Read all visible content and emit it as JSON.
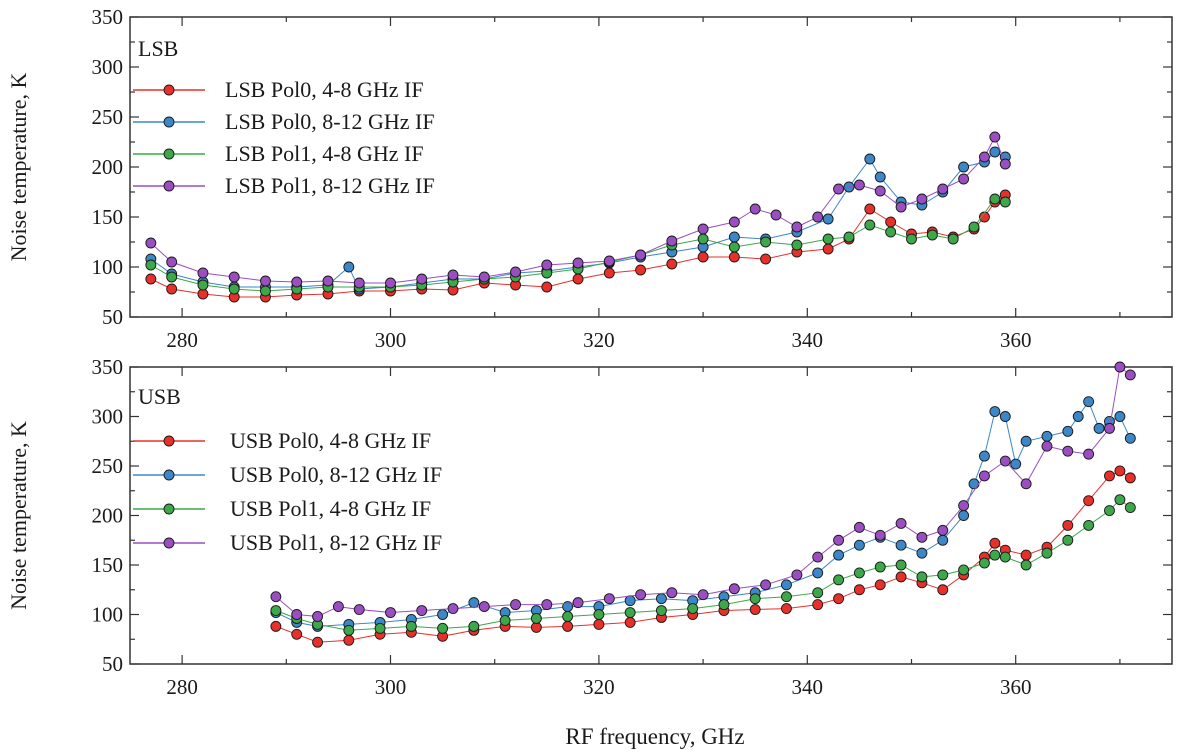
{
  "chart_data": [
    {
      "type": "line",
      "panel_title": "LSB",
      "xlabel": "",
      "ylabel": "Noise temperature, K",
      "xlim": [
        275,
        375
      ],
      "ylim": [
        50,
        350
      ],
      "xticks": [
        280,
        300,
        320,
        340,
        360
      ],
      "yticks": [
        50,
        100,
        150,
        200,
        250,
        300,
        350
      ],
      "legend_position": "top-left",
      "series": [
        {
          "name": "LSB Pol0, 4-8 GHz IF",
          "color": "#e8302a",
          "x": [
            277,
            279,
            282,
            285,
            288,
            291,
            294,
            297,
            300,
            303,
            306,
            309,
            312,
            315,
            318,
            321,
            324,
            327,
            330,
            333,
            336,
            339,
            342,
            344,
            346,
            348,
            350,
            352,
            354,
            356,
            357,
            358,
            359
          ],
          "y": [
            88,
            78,
            73,
            70,
            70,
            72,
            73,
            76,
            76,
            78,
            77,
            84,
            82,
            80,
            88,
            94,
            97,
            103,
            110,
            110,
            108,
            115,
            118,
            128,
            158,
            145,
            133,
            135,
            130,
            138,
            150,
            165,
            172
          ]
        },
        {
          "name": "LSB Pol0, 8-12 GHz IF",
          "color": "#3b87c8",
          "x": [
            277,
            279,
            282,
            285,
            288,
            291,
            294,
            296,
            297,
            300,
            303,
            306,
            309,
            312,
            315,
            318,
            321,
            324,
            327,
            330,
            333,
            336,
            339,
            342,
            344,
            346,
            347,
            349,
            351,
            353,
            355,
            357,
            358,
            359
          ],
          "y": [
            108,
            93,
            85,
            80,
            80,
            80,
            82,
            100,
            78,
            80,
            84,
            88,
            88,
            94,
            96,
            100,
            104,
            110,
            115,
            120,
            130,
            128,
            135,
            148,
            180,
            208,
            190,
            165,
            162,
            175,
            200,
            205,
            215,
            210
          ]
        },
        {
          "name": "LSB Pol1, 4-8 GHz IF",
          "color": "#3ca84a",
          "x": [
            277,
            279,
            282,
            285,
            288,
            291,
            294,
            297,
            300,
            303,
            306,
            309,
            312,
            315,
            318,
            321,
            324,
            327,
            330,
            333,
            336,
            339,
            342,
            344,
            346,
            348,
            350,
            352,
            354,
            356,
            358,
            359
          ],
          "y": [
            102,
            90,
            82,
            78,
            76,
            78,
            80,
            80,
            80,
            82,
            85,
            88,
            90,
            94,
            98,
            105,
            112,
            122,
            128,
            120,
            125,
            122,
            128,
            130,
            142,
            135,
            128,
            132,
            128,
            140,
            168,
            165
          ]
        },
        {
          "name": "LSB Pol1, 8-12 GHz IF",
          "color": "#9a4ec2",
          "x": [
            277,
            279,
            282,
            285,
            288,
            291,
            294,
            297,
            300,
            303,
            306,
            309,
            312,
            315,
            318,
            321,
            324,
            327,
            330,
            333,
            335,
            337,
            339,
            341,
            343,
            345,
            347,
            349,
            351,
            353,
            355,
            357,
            358,
            359
          ],
          "y": [
            124,
            105,
            94,
            90,
            86,
            85,
            86,
            84,
            84,
            88,
            92,
            90,
            95,
            102,
            104,
            106,
            112,
            126,
            138,
            145,
            158,
            152,
            140,
            150,
            178,
            182,
            176,
            160,
            168,
            178,
            188,
            210,
            230,
            203
          ]
        }
      ]
    },
    {
      "type": "line",
      "panel_title": "USB",
      "xlabel": "RF frequency, GHz",
      "ylabel": "Noise temperature, K",
      "xlim": [
        275,
        375
      ],
      "ylim": [
        50,
        350
      ],
      "xticks": [
        280,
        300,
        320,
        340,
        360
      ],
      "yticks": [
        50,
        100,
        150,
        200,
        250,
        300,
        350
      ],
      "legend_position": "top-left",
      "series": [
        {
          "name": "USB Pol0, 4-8 GHz IF",
          "color": "#e8302a",
          "x": [
            289,
            291,
            293,
            296,
            299,
            302,
            305,
            308,
            311,
            314,
            317,
            320,
            323,
            326,
            329,
            332,
            335,
            338,
            341,
            343,
            345,
            347,
            349,
            351,
            353,
            355,
            357,
            358,
            359,
            361,
            363,
            365,
            367,
            369,
            370,
            371
          ],
          "y": [
            88,
            80,
            72,
            74,
            80,
            82,
            78,
            84,
            88,
            87,
            88,
            90,
            92,
            97,
            100,
            104,
            105,
            106,
            110,
            116,
            125,
            130,
            138,
            132,
            125,
            140,
            158,
            172,
            165,
            160,
            168,
            190,
            215,
            240,
            245,
            238
          ]
        },
        {
          "name": "USB Pol0, 8-12 GHz IF",
          "color": "#3b87c8",
          "x": [
            289,
            291,
            293,
            296,
            299,
            302,
            305,
            308,
            311,
            314,
            317,
            320,
            323,
            326,
            329,
            332,
            335,
            338,
            341,
            343,
            345,
            347,
            349,
            351,
            353,
            355,
            356,
            357,
            358,
            359,
            360,
            361,
            363,
            365,
            366,
            367,
            368,
            369,
            370,
            371
          ],
          "y": [
            102,
            92,
            88,
            90,
            92,
            95,
            100,
            112,
            102,
            104,
            108,
            108,
            114,
            116,
            114,
            118,
            122,
            130,
            142,
            160,
            170,
            178,
            170,
            162,
            175,
            200,
            232,
            260,
            305,
            300,
            252,
            275,
            280,
            285,
            300,
            315,
            288,
            295,
            300,
            278
          ]
        },
        {
          "name": "USB Pol1, 4-8 GHz IF",
          "color": "#3ca84a",
          "x": [
            289,
            291,
            293,
            296,
            299,
            302,
            305,
            308,
            311,
            314,
            317,
            320,
            323,
            326,
            329,
            332,
            335,
            338,
            341,
            343,
            345,
            347,
            349,
            351,
            353,
            355,
            357,
            358,
            359,
            361,
            363,
            365,
            367,
            369,
            370,
            371
          ],
          "y": [
            104,
            96,
            90,
            84,
            86,
            88,
            86,
            88,
            94,
            96,
            98,
            100,
            102,
            104,
            106,
            110,
            116,
            118,
            122,
            135,
            142,
            148,
            150,
            138,
            140,
            145,
            152,
            160,
            158,
            150,
            162,
            175,
            190,
            205,
            216,
            208
          ]
        },
        {
          "name": "USB Pol1, 8-12 GHz IF",
          "color": "#9a4ec2",
          "x": [
            289,
            291,
            293,
            295,
            297,
            300,
            303,
            306,
            309,
            312,
            315,
            318,
            321,
            324,
            327,
            330,
            333,
            336,
            339,
            341,
            343,
            345,
            347,
            349,
            351,
            353,
            355,
            357,
            359,
            361,
            363,
            365,
            367,
            369,
            370,
            371
          ],
          "y": [
            118,
            100,
            98,
            108,
            105,
            102,
            104,
            106,
            108,
            110,
            110,
            112,
            116,
            120,
            122,
            120,
            126,
            130,
            140,
            158,
            175,
            188,
            180,
            192,
            178,
            185,
            210,
            240,
            255,
            232,
            270,
            265,
            262,
            288,
            350,
            342
          ]
        }
      ]
    }
  ]
}
